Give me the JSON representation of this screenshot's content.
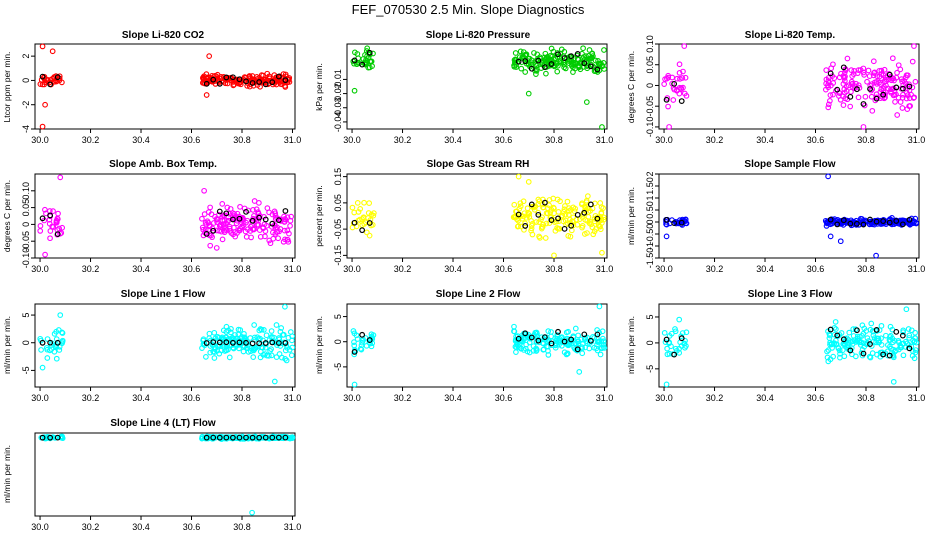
{
  "figure": {
    "title": "FEF_070530  2.5 Min. Slope Diagnostics"
  },
  "colors": {
    "red": "#ff0000",
    "green": "#00cc00",
    "magenta": "#ff00ff",
    "yellow": "#ffff00",
    "blue": "#0000ff",
    "cyan": "#00ffff",
    "ref": "#000000"
  },
  "chart_data": [
    {
      "id": "co2",
      "type": "scatter",
      "title": "Slope Li-820 CO2",
      "ylabel": "Ltcor ppm per min.",
      "color": "red",
      "xlim": [
        29.98,
        31.01
      ],
      "ylim": [
        -4,
        3
      ],
      "xticks": [
        30.0,
        30.2,
        30.4,
        30.6,
        30.8,
        31.0
      ],
      "yticks": [
        -4,
        -2,
        0,
        2
      ],
      "x_clusters": [
        [
          30.0,
          30.09
        ],
        [
          30.64,
          31.0
        ]
      ],
      "spread": 0.35,
      "outliers": [
        [
          30.01,
          2.8
        ],
        [
          30.05,
          2.4
        ],
        [
          30.02,
          -2
        ],
        [
          30.01,
          -3.8
        ],
        [
          30.67,
          2.0
        ],
        [
          30.66,
          -1.2
        ]
      ]
    },
    {
      "id": "pressure",
      "type": "scatter",
      "title": "Slope Li-820 Pressure",
      "ylabel": "kPa per min.",
      "color": "green",
      "xlim": [
        29.98,
        31.01
      ],
      "ylim": [
        -0.045,
        0.015
      ],
      "xticks": [
        30.0,
        30.2,
        30.4,
        30.6,
        30.8,
        31.0
      ],
      "yticks": [
        -0.04,
        -0.03,
        -0.02,
        -0.01
      ],
      "x_clusters": [
        [
          30.0,
          30.09
        ],
        [
          30.64,
          31.0
        ]
      ],
      "spread": 0.006,
      "outliers": [
        [
          30.06,
          0.012
        ],
        [
          30.01,
          -0.018
        ],
        [
          30.99,
          -0.044
        ],
        [
          30.7,
          -0.02
        ],
        [
          30.93,
          -0.026
        ]
      ]
    },
    {
      "id": "temp",
      "type": "scatter",
      "title": "Slope Li-820 Temp.",
      "ylabel": "degrees C per min.",
      "color": "magenta",
      "xlim": [
        29.98,
        31.01
      ],
      "ylim": [
        -0.105,
        0.1
      ],
      "xticks": [
        30.0,
        30.2,
        30.4,
        30.6,
        30.8,
        31.0
      ],
      "yticks": [
        -0.1,
        -0.05,
        0.0,
        0.05,
        0.1
      ],
      "x_clusters": [
        [
          30.0,
          30.09
        ],
        [
          30.64,
          31.0
        ]
      ],
      "spread": 0.045,
      "outliers": [
        [
          30.08,
          0.095
        ],
        [
          30.99,
          0.095
        ],
        [
          30.79,
          -0.1
        ],
        [
          30.02,
          -0.1
        ]
      ]
    },
    {
      "id": "ambbox",
      "type": "scatter",
      "title": "Slope Amb. Box Temp.",
      "ylabel": "degrees C per min.",
      "color": "magenta",
      "xlim": [
        29.98,
        31.01
      ],
      "ylim": [
        -0.1,
        0.15
      ],
      "xticks": [
        30.0,
        30.2,
        30.4,
        30.6,
        30.8,
        31.0
      ],
      "yticks": [
        -0.1,
        -0.05,
        0.0,
        0.05,
        0.1
      ],
      "x_clusters": [
        [
          30.0,
          30.09
        ],
        [
          30.64,
          31.0
        ]
      ],
      "spread": 0.045,
      "outliers": [
        [
          30.08,
          0.14
        ],
        [
          30.02,
          -0.09
        ],
        [
          30.65,
          0.1
        ],
        [
          30.7,
          -0.07
        ]
      ]
    },
    {
      "id": "rh",
      "type": "scatter",
      "title": "Slope Gas Stream RH",
      "ylabel": "percent per min.",
      "color": "yellow",
      "xlim": [
        29.98,
        31.01
      ],
      "ylim": [
        -0.16,
        0.16
      ],
      "xticks": [
        30.0,
        30.2,
        30.4,
        30.6,
        30.8,
        31.0
      ],
      "yticks": [
        -0.15,
        -0.05,
        0.05,
        0.15
      ],
      "x_clusters": [
        [
          30.0,
          30.09
        ],
        [
          30.64,
          31.0
        ]
      ],
      "spread": 0.06,
      "outliers": [
        [
          30.66,
          0.15
        ],
        [
          30.99,
          -0.14
        ],
        [
          30.8,
          -0.15
        ],
        [
          30.7,
          0.13
        ]
      ]
    },
    {
      "id": "sample",
      "type": "scatter",
      "title": "Slope Sample Flow",
      "ylabel": "ml/min per min.",
      "color": "blue",
      "xlim": [
        29.98,
        31.01
      ],
      "ylim": [
        -1.5,
        2.0
      ],
      "xticks": [
        30.0,
        30.2,
        30.4,
        30.6,
        30.8,
        31.0
      ],
      "yticks": [
        -1.5,
        -1.0,
        -0.5,
        0.0,
        0.5,
        1.0,
        1.5,
        2.0
      ],
      "x_clusters": [
        [
          30.0,
          30.09
        ],
        [
          30.64,
          31.0
        ]
      ],
      "spread": 0.12,
      "outliers": [
        [
          30.65,
          1.9
        ],
        [
          30.84,
          -1.4
        ],
        [
          30.66,
          -0.6
        ],
        [
          30.01,
          -0.6
        ],
        [
          30.7,
          -0.8
        ]
      ]
    },
    {
      "id": "line1",
      "type": "scatter",
      "title": "Slope Line 1 Flow",
      "ylabel": "ml/min per min.",
      "color": "cyan",
      "xlim": [
        29.98,
        31.01
      ],
      "ylim": [
        -8,
        7
      ],
      "xticks": [
        30.0,
        30.2,
        30.4,
        30.6,
        30.8,
        31.0
      ],
      "yticks": [
        -5,
        0,
        5
      ],
      "x_clusters": [
        [
          30.0,
          30.09
        ],
        [
          30.64,
          31.0
        ]
      ],
      "spread": 2.4,
      "outliers": [
        [
          30.01,
          -4.5
        ],
        [
          30.08,
          5
        ],
        [
          30.93,
          -7
        ],
        [
          30.97,
          6.5
        ]
      ]
    },
    {
      "id": "line2",
      "type": "scatter",
      "title": "Slope Line 2 Flow",
      "ylabel": "ml/min per min.",
      "color": "cyan",
      "xlim": [
        29.98,
        31.01
      ],
      "ylim": [
        -9,
        7.5
      ],
      "xticks": [
        30.0,
        30.2,
        30.4,
        30.6,
        30.8,
        31.0
      ],
      "yticks": [
        -5,
        0,
        5
      ],
      "x_clusters": [
        [
          30.0,
          30.09
        ],
        [
          30.64,
          31.0
        ]
      ],
      "spread": 2.2,
      "outliers": [
        [
          30.01,
          -8.5
        ],
        [
          30.98,
          7
        ],
        [
          30.9,
          -6
        ]
      ]
    },
    {
      "id": "line3",
      "type": "scatter",
      "title": "Slope Line 3 Flow",
      "ylabel": "ml/min per min.",
      "color": "cyan",
      "xlim": [
        29.98,
        31.01
      ],
      "ylim": [
        -8.5,
        7.5
      ],
      "xticks": [
        30.0,
        30.2,
        30.4,
        30.6,
        30.8,
        31.0
      ],
      "yticks": [
        -5,
        0,
        5
      ],
      "x_clusters": [
        [
          30.0,
          30.09
        ],
        [
          30.64,
          31.0
        ]
      ],
      "spread": 2.6,
      "outliers": [
        [
          30.01,
          -8
        ],
        [
          30.91,
          -7.5
        ],
        [
          30.96,
          6.5
        ],
        [
          30.06,
          4.5
        ]
      ]
    },
    {
      "id": "line4",
      "type": "scatter",
      "title": "Slope Line 4 (LT) Flow",
      "ylabel": "ml/min per min.",
      "color": "cyan",
      "xlim": [
        29.98,
        31.01
      ],
      "ylim": [
        -1.2,
        0.05
      ],
      "xticks": [
        30.0,
        30.2,
        30.4,
        30.6,
        30.8,
        31.0
      ],
      "yticks": [],
      "x_clusters": [
        [
          30.0,
          30.09
        ],
        [
          30.64,
          31.0
        ]
      ],
      "spread": 0.015,
      "outliers": [
        [
          30.84,
          -1.15
        ]
      ]
    }
  ]
}
